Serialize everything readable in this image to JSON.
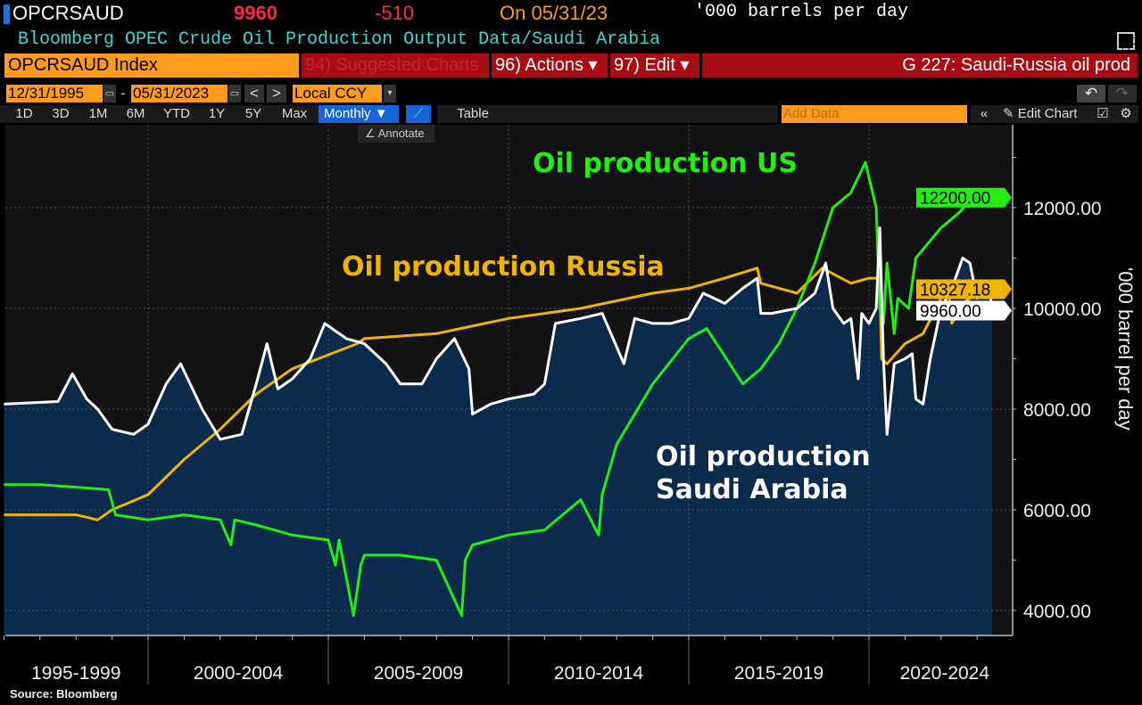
{
  "header": {
    "ticker": "OPCRSAUD",
    "last_value": "9960",
    "change": "-510",
    "date_label": "On 05/31/23",
    "units": "'000 barrels per day",
    "description": "Bloomberg OPEC Crude Oil Production Output Data/Saudi Arabia"
  },
  "toolbar": {
    "security": "OPCRSAUD Index",
    "suggested": "94) Suggested Charts",
    "actions": "96) Actions ▾",
    "edit": "97) Edit ▾",
    "chart_title": "G 227: Saudi-Russia oil prod"
  },
  "controls": {
    "start_date": "12/31/1995",
    "end_date": "05/31/2023",
    "currency": "Local CCY",
    "prev": "<",
    "next": ">",
    "dash": "-"
  },
  "periods": [
    "1D",
    "3D",
    "1M",
    "6M",
    "YTD",
    "1Y",
    "5Y",
    "Max"
  ],
  "frequency": "Monthly ▼",
  "table_label": "Table",
  "annotate_label": "Annotate",
  "add_data_placeholder": "Add Data",
  "edit_chart_label": "Edit Chart",
  "colors": {
    "saudi": "#ffffff",
    "russia": "#f0b400",
    "us": "#22ee11",
    "area": "#0b2a4c",
    "plot_bg": "#131316"
  },
  "source": "Source: Bloomberg",
  "chart_data": {
    "type": "line",
    "title": "G 227: Saudi-Russia oil prod",
    "ylabel": "'000 barrel per day",
    "ylim": [
      3500,
      13650
    ],
    "yticks": [
      "4000.00",
      "6000.00",
      "8000.00",
      "10000.00",
      "12000.00"
    ],
    "ytick_values": [
      4000,
      6000,
      8000,
      10000,
      12000
    ],
    "xlim": [
      1996.0,
      2023.9
    ],
    "xcategories": [
      "1995-1999",
      "2000-2004",
      "2005-2009",
      "2010-2014",
      "2015-2019",
      "2020-2024"
    ],
    "xcategory_ranges": [
      [
        1996,
        2000
      ],
      [
        2000,
        2005
      ],
      [
        2005,
        2010
      ],
      [
        2010,
        2015
      ],
      [
        2015,
        2020
      ],
      [
        2020,
        2024.2
      ]
    ],
    "grid": true,
    "series": [
      {
        "name": "Oil production Saudi Arabia",
        "key": "saudi",
        "last_label": "9960.00",
        "filled": true,
        "x": [
          1996,
          1997.5,
          1997.9,
          1998.3,
          1998.6,
          1999,
          1999.6,
          2000,
          2000.5,
          2000.9,
          2001.5,
          2002,
          2002.6,
          2003,
          2003.3,
          2003.6,
          2004,
          2004.5,
          2004.9,
          2005.5,
          2006,
          2006.6,
          2007,
          2007.6,
          2008,
          2008.5,
          2008.9,
          2009,
          2009.5,
          2010,
          2010.7,
          2011,
          2011.3,
          2012,
          2012.6,
          2012.9,
          2013.2,
          2013.5,
          2014,
          2014.5,
          2015,
          2015.4,
          2016,
          2016.5,
          2016.9,
          2017,
          2017.3,
          2018,
          2018.5,
          2018.8,
          2019,
          2019.3,
          2019.5,
          2019.7,
          2019.8,
          2020,
          2020.2,
          2020.3,
          2020.4,
          2020.5,
          2020.7,
          2021,
          2021.2,
          2021.3,
          2021.5,
          2021.7,
          2022,
          2022.3,
          2022.6,
          2022.8,
          2023,
          2023.25,
          2023.33,
          2023.42
        ],
        "y": [
          8100,
          8150,
          8700,
          8200,
          8000,
          7600,
          7500,
          7700,
          8500,
          8900,
          8000,
          7400,
          7500,
          8500,
          9300,
          8400,
          8600,
          9000,
          9700,
          9400,
          9300,
          8900,
          8500,
          8500,
          9000,
          9400,
          8800,
          7900,
          8100,
          8200,
          8300,
          8500,
          9700,
          9800,
          9900,
          9400,
          8900,
          9800,
          9700,
          9700,
          9800,
          10300,
          10100,
          10400,
          10600,
          9900,
          9900,
          10000,
          10300,
          10900,
          10000,
          9700,
          9800,
          8600,
          9900,
          9700,
          10000,
          11600,
          9000,
          7500,
          8900,
          9000,
          9100,
          8200,
          8100,
          9000,
          10000,
          10400,
          11000,
          10900,
          10200,
          10500,
          10450,
          9960
        ]
      },
      {
        "name": "Oil production Russia",
        "key": "russia",
        "last_label": "10327.18",
        "x": [
          1996,
          1998,
          1998.6,
          1999,
          2000,
          2001,
          2002,
          2003,
          2004,
          2005.8,
          2006,
          2008,
          2010,
          2012,
          2014,
          2015,
          2016,
          2016.9,
          2017,
          2018,
          2018.7,
          2019.5,
          2020,
          2020.3,
          2020.35,
          2020.5,
          2021,
          2021.5,
          2022,
          2022.2,
          2022.3,
          2022.6,
          2023,
          2023.42
        ],
        "y": [
          5900,
          5900,
          5800,
          6000,
          6300,
          7000,
          7600,
          8300,
          8800,
          9300,
          9400,
          9500,
          9800,
          10000,
          10300,
          10400,
          10600,
          10800,
          10500,
          10300,
          10800,
          10500,
          10600,
          10600,
          9000,
          8900,
          9300,
          9500,
          10200,
          10400,
          9700,
          10100,
          10300,
          10327
        ]
      },
      {
        "name": "Oil production US",
        "key": "us",
        "last_label": "12200.00",
        "x": [
          1996,
          1997,
          1998,
          1998.9,
          1999.1,
          2000,
          2001,
          2002,
          2002.3,
          2002.4,
          2003,
          2004,
          2005,
          2005.2,
          2005.3,
          2005.7,
          2005.9,
          2006,
          2007,
          2008,
          2008.7,
          2008.8,
          2009,
          2010,
          2011,
          2012,
          2012.5,
          2012.6,
          2013,
          2014,
          2015,
          2015.5,
          2016.5,
          2017,
          2017.5,
          2018,
          2018.5,
          2019,
          2019.5,
          2019.9,
          2020.2,
          2020.3,
          2020.4,
          2020.5,
          2020.7,
          2020.8,
          2021.1,
          2021.3,
          2022,
          2022.5,
          2023,
          2023.42
        ],
        "y": [
          6500,
          6500,
          6450,
          6400,
          5900,
          5800,
          5900,
          5800,
          5300,
          5800,
          5700,
          5500,
          5400,
          4900,
          5400,
          3900,
          4900,
          5100,
          5100,
          5000,
          3900,
          5000,
          5300,
          5500,
          5600,
          6200,
          5500,
          6300,
          7300,
          8500,
          9400,
          9600,
          8500,
          8800,
          9300,
          10000,
          10900,
          12000,
          12300,
          12900,
          12000,
          10000,
          9700,
          10900,
          9500,
          10200,
          10000,
          11000,
          11600,
          11900,
          12300,
          12200
        ]
      }
    ],
    "annotations": [
      {
        "text": "Oil production US",
        "series": "us"
      },
      {
        "text": "Oil production Russia",
        "series": "russia"
      },
      {
        "text_lines": [
          "Oil production",
          "Saudi Arabia"
        ],
        "series": "saudi"
      }
    ]
  }
}
